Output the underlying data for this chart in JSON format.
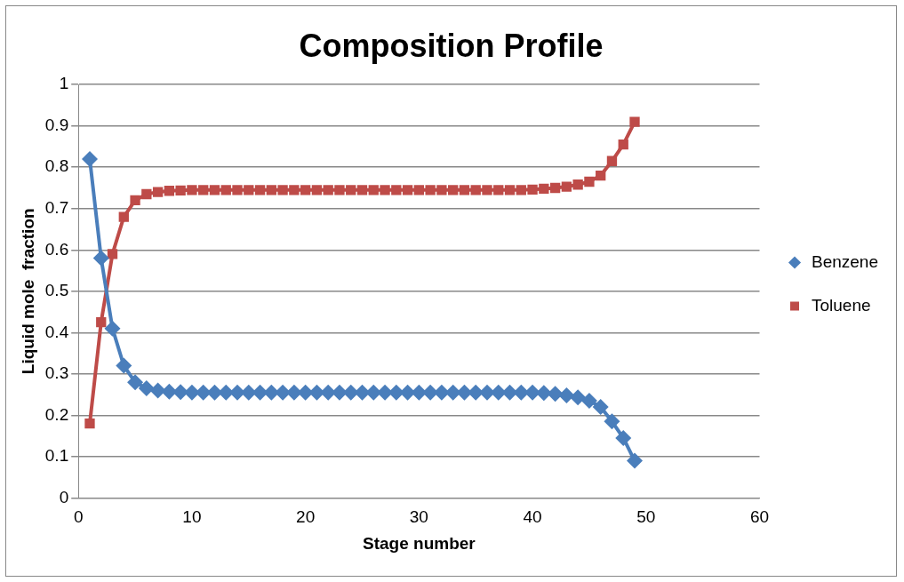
{
  "chart_data": {
    "type": "line",
    "title": "Composition Profile",
    "xlabel": "Stage number",
    "ylabel": "Liquid mole  fraction",
    "x": [
      1,
      2,
      3,
      4,
      5,
      6,
      7,
      8,
      9,
      10,
      11,
      12,
      13,
      14,
      15,
      16,
      17,
      18,
      19,
      20,
      21,
      22,
      23,
      24,
      25,
      26,
      27,
      28,
      29,
      30,
      31,
      32,
      33,
      34,
      35,
      36,
      37,
      38,
      39,
      40,
      41,
      42,
      43,
      44,
      45,
      46,
      47,
      48,
      49
    ],
    "series": [
      {
        "name": "Benzene",
        "color": "#4a7ebb",
        "marker": "diamond",
        "values": [
          0.82,
          0.58,
          0.41,
          0.32,
          0.28,
          0.265,
          0.26,
          0.257,
          0.256,
          0.255,
          0.255,
          0.255,
          0.255,
          0.255,
          0.255,
          0.255,
          0.255,
          0.255,
          0.255,
          0.255,
          0.255,
          0.255,
          0.255,
          0.255,
          0.255,
          0.255,
          0.255,
          0.255,
          0.255,
          0.255,
          0.255,
          0.255,
          0.255,
          0.255,
          0.255,
          0.255,
          0.255,
          0.255,
          0.255,
          0.255,
          0.254,
          0.252,
          0.248,
          0.243,
          0.235,
          0.22,
          0.185,
          0.145,
          0.09
        ]
      },
      {
        "name": "Toluene",
        "color": "#be4b48",
        "marker": "square",
        "values": [
          0.18,
          0.425,
          0.59,
          0.68,
          0.72,
          0.735,
          0.74,
          0.743,
          0.744,
          0.745,
          0.745,
          0.745,
          0.745,
          0.745,
          0.745,
          0.745,
          0.745,
          0.745,
          0.745,
          0.745,
          0.745,
          0.745,
          0.745,
          0.745,
          0.745,
          0.745,
          0.745,
          0.745,
          0.745,
          0.745,
          0.745,
          0.745,
          0.745,
          0.745,
          0.745,
          0.745,
          0.745,
          0.745,
          0.745,
          0.746,
          0.748,
          0.75,
          0.753,
          0.758,
          0.765,
          0.78,
          0.815,
          0.855,
          0.91
        ]
      }
    ],
    "xlim": [
      0,
      60
    ],
    "xticks": [
      0,
      10,
      20,
      30,
      40,
      50,
      60
    ],
    "ylim": [
      0,
      1
    ],
    "yticks": [
      0,
      0.1,
      0.2,
      0.3,
      0.4,
      0.5,
      0.6,
      0.7,
      0.8,
      0.9,
      1
    ],
    "grid": "y",
    "legend": "right",
    "line_style": "solid"
  }
}
